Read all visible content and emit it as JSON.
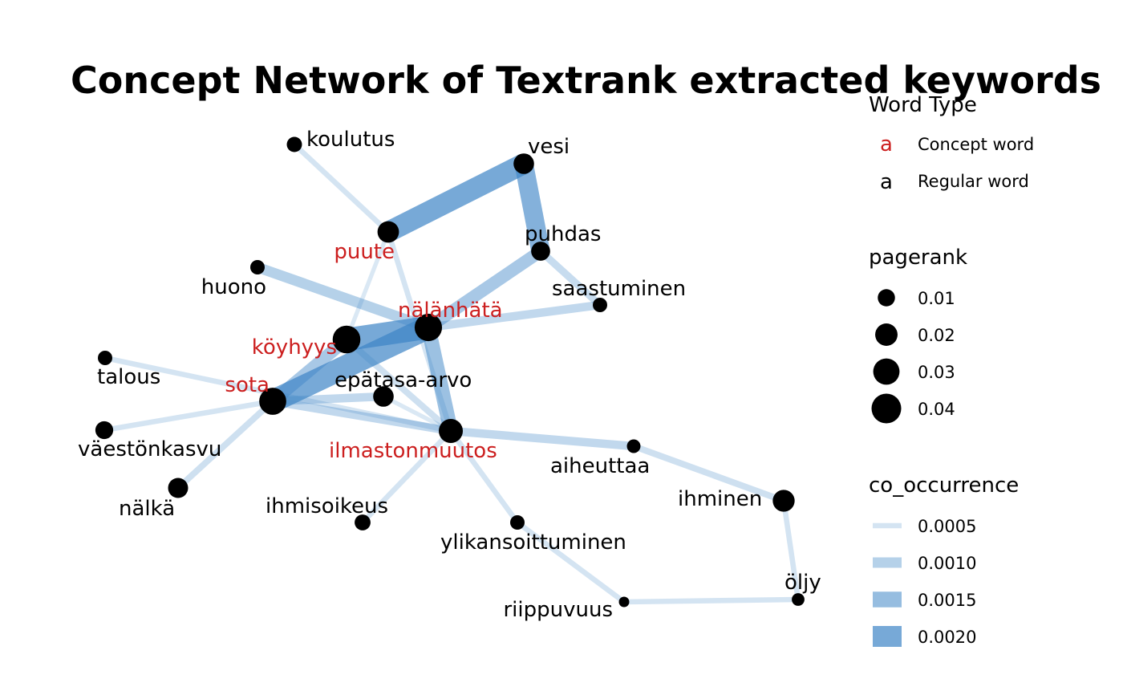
{
  "title": "Concept Network of Textrank extracted keywords",
  "colors": {
    "concept": "#cc1f1f",
    "regular": "#000000",
    "edge": "#3d85c6",
    "node": "#000000"
  },
  "legend": {
    "word_type": {
      "title": "Word Type",
      "items": [
        {
          "glyph": "a",
          "label": "Concept word",
          "type": "concept"
        },
        {
          "glyph": "a",
          "label": "Regular word",
          "type": "regular"
        }
      ]
    },
    "pagerank": {
      "title": "pagerank",
      "items": [
        {
          "value": 0.01,
          "label": "0.01"
        },
        {
          "value": 0.02,
          "label": "0.02"
        },
        {
          "value": 0.03,
          "label": "0.03"
        },
        {
          "value": 0.04,
          "label": "0.04"
        }
      ]
    },
    "co_occurrence": {
      "title": "co_occurrence",
      "items": [
        {
          "value": 0.0005,
          "label": "0.0005"
        },
        {
          "value": 0.001,
          "label": "0.0010"
        },
        {
          "value": 0.0015,
          "label": "0.0015"
        },
        {
          "value": 0.002,
          "label": "0.0020"
        }
      ]
    }
  },
  "nodes": [
    {
      "id": "koulutus",
      "label": "koulutus",
      "type": "regular",
      "pagerank": 0.007
    },
    {
      "id": "vesi",
      "label": "vesi",
      "type": "regular",
      "pagerank": 0.016
    },
    {
      "id": "puute",
      "label": "puute",
      "type": "concept",
      "pagerank": 0.018
    },
    {
      "id": "puhdas",
      "label": "puhdas",
      "type": "regular",
      "pagerank": 0.013
    },
    {
      "id": "huono",
      "label": "huono",
      "type": "regular",
      "pagerank": 0.006
    },
    {
      "id": "saastuminen",
      "label": "saastuminen",
      "type": "regular",
      "pagerank": 0.006
    },
    {
      "id": "nalanhata",
      "label": "nälänhätä",
      "type": "concept",
      "pagerank": 0.033
    },
    {
      "id": "koyhyys",
      "label": "köyhyys",
      "type": "concept",
      "pagerank": 0.034
    },
    {
      "id": "talous",
      "label": "talous",
      "type": "regular",
      "pagerank": 0.006
    },
    {
      "id": "sota",
      "label": "sota",
      "type": "concept",
      "pagerank": 0.032
    },
    {
      "id": "epatasa",
      "label": "epätasa-arvo",
      "type": "regular",
      "pagerank": 0.016
    },
    {
      "id": "vaestonkasvu",
      "label": "väestönkasvu",
      "type": "regular",
      "pagerank": 0.011
    },
    {
      "id": "ilmasto",
      "label": "ilmastonmuutos",
      "type": "concept",
      "pagerank": 0.024
    },
    {
      "id": "aiheuttaa",
      "label": "aiheuttaa",
      "type": "regular",
      "pagerank": 0.005
    },
    {
      "id": "nalka",
      "label": "nälkä",
      "type": "regular",
      "pagerank": 0.015
    },
    {
      "id": "ihmisoikeus",
      "label": "ihmisoikeus",
      "type": "regular",
      "pagerank": 0.008
    },
    {
      "id": "ihminen",
      "label": "ihminen",
      "type": "regular",
      "pagerank": 0.019
    },
    {
      "id": "ylikansoittuminen",
      "label": "ylikansoittuminen",
      "type": "regular",
      "pagerank": 0.006
    },
    {
      "id": "oljy",
      "label": "öljy",
      "type": "regular",
      "pagerank": 0.004
    },
    {
      "id": "riippuvuus",
      "label": "riippuvuus",
      "type": "regular",
      "pagerank": 0.002
    }
  ],
  "edges": [
    {
      "source": "koulutus",
      "target": "puute",
      "weight": 0.0005
    },
    {
      "source": "puute",
      "target": "vesi",
      "weight": 0.002
    },
    {
      "source": "vesi",
      "target": "puhdas",
      "weight": 0.0018
    },
    {
      "source": "puhdas",
      "target": "nalanhata",
      "weight": 0.0012
    },
    {
      "source": "puhdas",
      "target": "saastuminen",
      "weight": 0.0007
    },
    {
      "source": "nalanhata",
      "target": "saastuminen",
      "weight": 0.0008
    },
    {
      "source": "huono",
      "target": "nalanhata",
      "weight": 0.001
    },
    {
      "source": "puute",
      "target": "ilmasto",
      "weight": 0.0005
    },
    {
      "source": "puute",
      "target": "koyhyys",
      "weight": 0.0004
    },
    {
      "source": "koyhyys",
      "target": "nalanhata",
      "weight": 0.0022
    },
    {
      "source": "sota",
      "target": "nalanhata",
      "weight": 0.0022
    },
    {
      "source": "sota",
      "target": "koyhyys",
      "weight": 0.0012
    },
    {
      "source": "nalanhata",
      "target": "ilmasto",
      "weight": 0.0014
    },
    {
      "source": "koyhyys",
      "target": "ilmasto",
      "weight": 0.0006
    },
    {
      "source": "sota",
      "target": "epatasa",
      "weight": 0.0008
    },
    {
      "source": "sota",
      "target": "ilmasto",
      "weight": 0.0008
    },
    {
      "source": "talous",
      "target": "ilmasto",
      "weight": 0.0005
    },
    {
      "source": "sota",
      "target": "vaestonkasvu",
      "weight": 0.0005
    },
    {
      "source": "sota",
      "target": "nalka",
      "weight": 0.0006
    },
    {
      "source": "epatasa",
      "target": "ilmasto",
      "weight": 0.0004
    },
    {
      "source": "ilmasto",
      "target": "aiheuttaa",
      "weight": 0.0008
    },
    {
      "source": "ilmasto",
      "target": "ihmisoikeus",
      "weight": 0.0005
    },
    {
      "source": "ilmasto",
      "target": "ylikansoittuminen",
      "weight": 0.0005
    },
    {
      "source": "aiheuttaa",
      "target": "ihminen",
      "weight": 0.0006
    },
    {
      "source": "ihminen",
      "target": "oljy",
      "weight": 0.0005
    },
    {
      "source": "oljy",
      "target": "riippuvuus",
      "weight": 0.0005
    },
    {
      "source": "riippuvuus",
      "target": "ylikansoittuminen",
      "weight": 0.0005
    }
  ]
}
